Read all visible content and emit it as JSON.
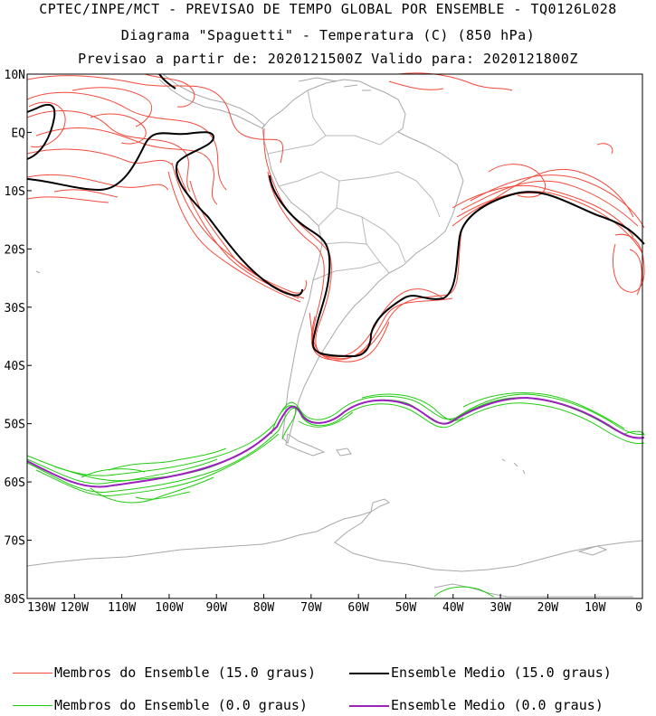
{
  "header": {
    "line1": "CPTEC/INPE/MCT - PREVISAO DE TEMPO GLOBAL POR ENSEMBLE - TQ0126L028",
    "line2": "Diagrama \"Spaguetti\" - Temperatura (C) (850 hPa)",
    "line3": "Previsao a partir de: 2020121500Z  Valido para: 2020121800Z"
  },
  "map": {
    "lat_labels": [
      "10N",
      "EQ",
      "10S",
      "20S",
      "30S",
      "40S",
      "50S",
      "60S",
      "70S",
      "80S"
    ],
    "lon_labels": [
      "130W",
      "120W",
      "110W",
      "100W",
      "90W",
      "80W",
      "70W",
      "60W",
      "50W",
      "40W",
      "30W",
      "20W",
      "10W",
      "0"
    ],
    "lat_range": [
      10,
      -80
    ],
    "lon_range": [
      -130,
      0
    ]
  },
  "legend": {
    "members_15": "Membros do Ensemble (15.0 graus)",
    "mean_15": "Ensemble Medio (15.0 graus)",
    "members_0": "Membros do Ensemble (0.0 graus)",
    "mean_0": "Ensemble Medio (0.0 graus)"
  },
  "colors": {
    "members_15": "#f24a3c",
    "mean_15": "#000000",
    "members_0": "#22cc11",
    "mean_0": "#9922bb",
    "coast": "#a0a0a0"
  }
}
